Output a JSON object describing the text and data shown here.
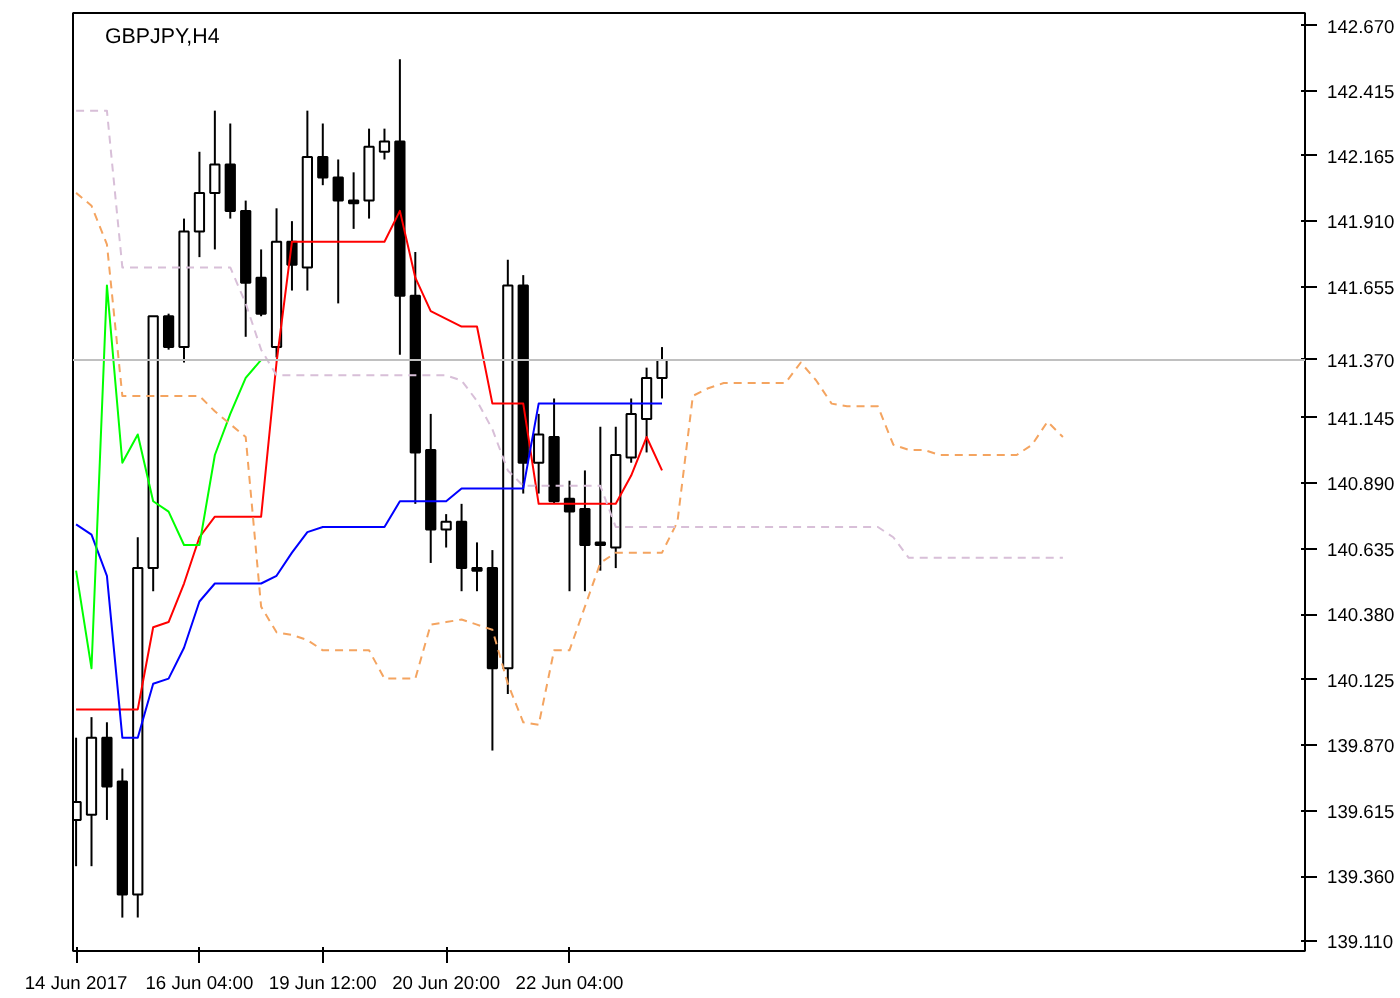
{
  "chart_data": {
    "type": "candlestick",
    "title": "GBPJPY,H4",
    "categories": [
      "14 Jun 2017",
      null,
      null,
      null,
      null,
      null,
      null,
      null,
      "16 Jun 04:00",
      null,
      null,
      null,
      null,
      null,
      null,
      null,
      "19 Jun 12:00",
      null,
      null,
      null,
      null,
      null,
      null,
      null,
      "20 Jun 20:00",
      null,
      null,
      null,
      null,
      null,
      null,
      null,
      "22 Jun 04:00",
      null,
      null,
      null,
      null,
      null,
      null,
      null,
      null,
      null,
      null,
      null,
      null,
      null,
      null,
      null,
      null,
      null,
      null,
      null,
      null,
      null,
      null,
      null,
      null,
      null,
      null,
      null,
      null,
      null,
      null,
      null,
      null
    ],
    "ohlc": [
      [
        139.58,
        139.9,
        139.4,
        139.65
      ],
      [
        139.6,
        139.98,
        139.4,
        139.9
      ],
      [
        139.9,
        139.96,
        139.58,
        139.71
      ],
      [
        139.73,
        139.78,
        139.2,
        139.29
      ],
      [
        139.29,
        140.68,
        139.2,
        140.56
      ],
      [
        140.56,
        141.54,
        140.47,
        141.54
      ],
      [
        141.54,
        141.55,
        141.41,
        141.42
      ],
      [
        141.42,
        141.92,
        141.36,
        141.87
      ],
      [
        141.87,
        142.18,
        141.77,
        142.02
      ],
      [
        142.02,
        142.34,
        141.8,
        142.13
      ],
      [
        142.13,
        142.29,
        141.92,
        141.95
      ],
      [
        141.95,
        141.99,
        141.46,
        141.67
      ],
      [
        141.69,
        141.8,
        141.54,
        141.55
      ],
      [
        141.42,
        141.96,
        141.38,
        141.83
      ],
      [
        141.83,
        141.91,
        141.64,
        141.74
      ],
      [
        141.73,
        142.34,
        141.64,
        142.16
      ],
      [
        142.16,
        142.29,
        142.05,
        142.08
      ],
      [
        142.08,
        142.15,
        141.59,
        141.99
      ],
      [
        141.99,
        142.1,
        141.88,
        141.98
      ],
      [
        141.99,
        142.27,
        141.92,
        142.2
      ],
      [
        142.18,
        142.27,
        142.15,
        142.22
      ],
      [
        142.22,
        142.54,
        141.39,
        141.62
      ],
      [
        141.62,
        141.79,
        140.81,
        141.01
      ],
      [
        141.02,
        141.16,
        140.58,
        140.71
      ],
      [
        140.71,
        140.77,
        140.64,
        140.74
      ],
      [
        140.74,
        140.81,
        140.47,
        140.56
      ],
      [
        140.56,
        140.66,
        140.47,
        140.55
      ],
      [
        140.56,
        140.63,
        139.85,
        140.17
      ],
      [
        140.17,
        141.76,
        140.07,
        141.66
      ],
      [
        141.66,
        141.7,
        140.85,
        140.97
      ],
      [
        140.97,
        141.16,
        140.85,
        141.08
      ],
      [
        141.07,
        141.22,
        140.81,
        140.82
      ],
      [
        140.83,
        140.9,
        140.47,
        140.78
      ],
      [
        140.79,
        140.94,
        140.47,
        140.65
      ],
      [
        140.66,
        141.11,
        140.55,
        140.65
      ],
      [
        140.64,
        141.11,
        140.56,
        141.0
      ],
      [
        140.99,
        141.22,
        140.97,
        141.16
      ],
      [
        141.14,
        141.34,
        141.01,
        141.3
      ],
      [
        141.3,
        141.42,
        141.22,
        141.37
      ],
      null,
      null,
      null,
      null,
      null,
      null,
      null,
      null,
      null,
      null,
      null,
      null,
      null,
      null,
      null,
      null,
      null,
      null,
      null,
      null,
      null,
      null,
      null,
      null,
      null,
      null
    ],
    "series": [
      {
        "type": "line",
        "color": "#ff0000",
        "line_style": "solid",
        "values": [
          140.01,
          140.01,
          140.01,
          140.01,
          140.01,
          140.33,
          140.35,
          140.5,
          140.68,
          140.76,
          140.76,
          140.76,
          140.76,
          141.36,
          141.83,
          141.83,
          141.83,
          141.83,
          141.83,
          141.83,
          141.83,
          141.95,
          141.69,
          141.56,
          141.53,
          141.5,
          141.5,
          141.2,
          141.2,
          141.2,
          140.81,
          140.81,
          140.81,
          140.81,
          140.81,
          140.81,
          140.92,
          141.07,
          140.94,
          null,
          null,
          null,
          null,
          null,
          null,
          null,
          null,
          null,
          null,
          null,
          null,
          null,
          null,
          null,
          null,
          null,
          null,
          null,
          null,
          null,
          null,
          null,
          null,
          null,
          null
        ]
      },
      {
        "type": "line",
        "color": "#0000ff",
        "line_style": "solid",
        "values": [
          140.73,
          140.69,
          140.53,
          139.9,
          139.9,
          140.11,
          140.13,
          140.25,
          140.43,
          140.5,
          140.5,
          140.5,
          140.5,
          140.53,
          140.62,
          140.7,
          140.72,
          140.72,
          140.72,
          140.72,
          140.72,
          140.82,
          140.82,
          140.82,
          140.82,
          140.87,
          140.87,
          140.87,
          140.87,
          140.87,
          141.2,
          141.2,
          141.2,
          141.2,
          141.2,
          141.2,
          141.2,
          141.2,
          141.2,
          null,
          null,
          null,
          null,
          null,
          null,
          null,
          null,
          null,
          null,
          null,
          null,
          null,
          null,
          null,
          null,
          null,
          null,
          null,
          null,
          null,
          null,
          null,
          null,
          null,
          null
        ]
      },
      {
        "type": "line",
        "color": "#00ff00",
        "line_style": "solid",
        "values": [
          140.55,
          140.17,
          141.66,
          140.97,
          141.08,
          140.82,
          140.78,
          140.65,
          140.65,
          141.0,
          141.16,
          141.3,
          141.37,
          null,
          null,
          null,
          null,
          null,
          null,
          null,
          null,
          null,
          null,
          null,
          null,
          null,
          null,
          null,
          null,
          null,
          null,
          null,
          null,
          null,
          null,
          null,
          null,
          null,
          null,
          null,
          null,
          null,
          null,
          null,
          null,
          null,
          null,
          null,
          null,
          null,
          null,
          null,
          null,
          null,
          null,
          null,
          null,
          null,
          null,
          null,
          null,
          null,
          null,
          null,
          null
        ]
      },
      {
        "type": "line",
        "color": "#f4a460",
        "line_style": "dashed",
        "values": [
          142.02,
          141.97,
          141.82,
          141.23,
          141.23,
          141.23,
          141.23,
          141.23,
          141.23,
          141.17,
          141.12,
          141.07,
          140.41,
          140.31,
          140.3,
          140.28,
          140.24,
          140.24,
          140.24,
          140.24,
          140.13,
          140.13,
          140.13,
          140.34,
          140.35,
          140.36,
          140.34,
          140.32,
          140.11,
          139.96,
          139.95,
          140.24,
          140.24,
          140.41,
          140.58,
          140.62,
          140.62,
          140.62,
          140.62,
          140.74,
          141.23,
          141.26,
          141.28,
          141.28,
          141.28,
          141.28,
          141.28,
          141.36,
          141.29,
          141.2,
          141.19,
          141.19,
          141.19,
          141.04,
          141.02,
          141.02,
          141.0,
          141.0,
          141.0,
          141.0,
          141.0,
          141.0,
          141.04,
          141.13,
          141.07
        ]
      },
      {
        "type": "line",
        "color": "#d8bfd8",
        "line_style": "dashed",
        "values": [
          142.34,
          142.34,
          142.34,
          141.73,
          141.73,
          141.73,
          141.73,
          141.73,
          141.73,
          141.73,
          141.73,
          141.59,
          141.41,
          141.31,
          141.31,
          141.31,
          141.31,
          141.31,
          141.31,
          141.31,
          141.31,
          141.31,
          141.31,
          141.31,
          141.31,
          141.29,
          141.21,
          141.1,
          140.94,
          140.88,
          140.88,
          140.88,
          140.88,
          140.88,
          140.88,
          140.72,
          140.72,
          140.72,
          140.72,
          140.72,
          140.72,
          140.72,
          140.72,
          140.72,
          140.72,
          140.72,
          140.72,
          140.72,
          140.72,
          140.72,
          140.72,
          140.72,
          140.72,
          140.68,
          140.6,
          140.6,
          140.6,
          140.6,
          140.6,
          140.6,
          140.6,
          140.6,
          140.6,
          140.6,
          140.6
        ]
      }
    ],
    "ylim": [
      139.07,
      142.72
    ],
    "yticks": [
      {
        "value": 142.67,
        "label": "142.670"
      },
      {
        "value": 142.415,
        "label": "142.415"
      },
      {
        "value": 142.165,
        "label": "142.165"
      },
      {
        "value": 141.91,
        "label": "141.910"
      },
      {
        "value": 141.655,
        "label": "141.655"
      },
      {
        "value": 141.145,
        "label": "141.145"
      },
      {
        "value": 140.89,
        "label": "140.890"
      },
      {
        "value": 140.635,
        "label": "140.635"
      },
      {
        "value": 140.38,
        "label": "140.380"
      },
      {
        "value": 140.125,
        "label": "140.125"
      },
      {
        "value": 139.87,
        "label": "139.870"
      },
      {
        "value": 139.615,
        "label": "139.615"
      },
      {
        "value": 139.36,
        "label": "139.360"
      },
      {
        "value": 139.11,
        "label": "139.110"
      }
    ],
    "ref_lines": [
      {
        "axis": "y",
        "value": 141.37,
        "label": "141.370",
        "color": "#c0c0c0"
      }
    ]
  }
}
